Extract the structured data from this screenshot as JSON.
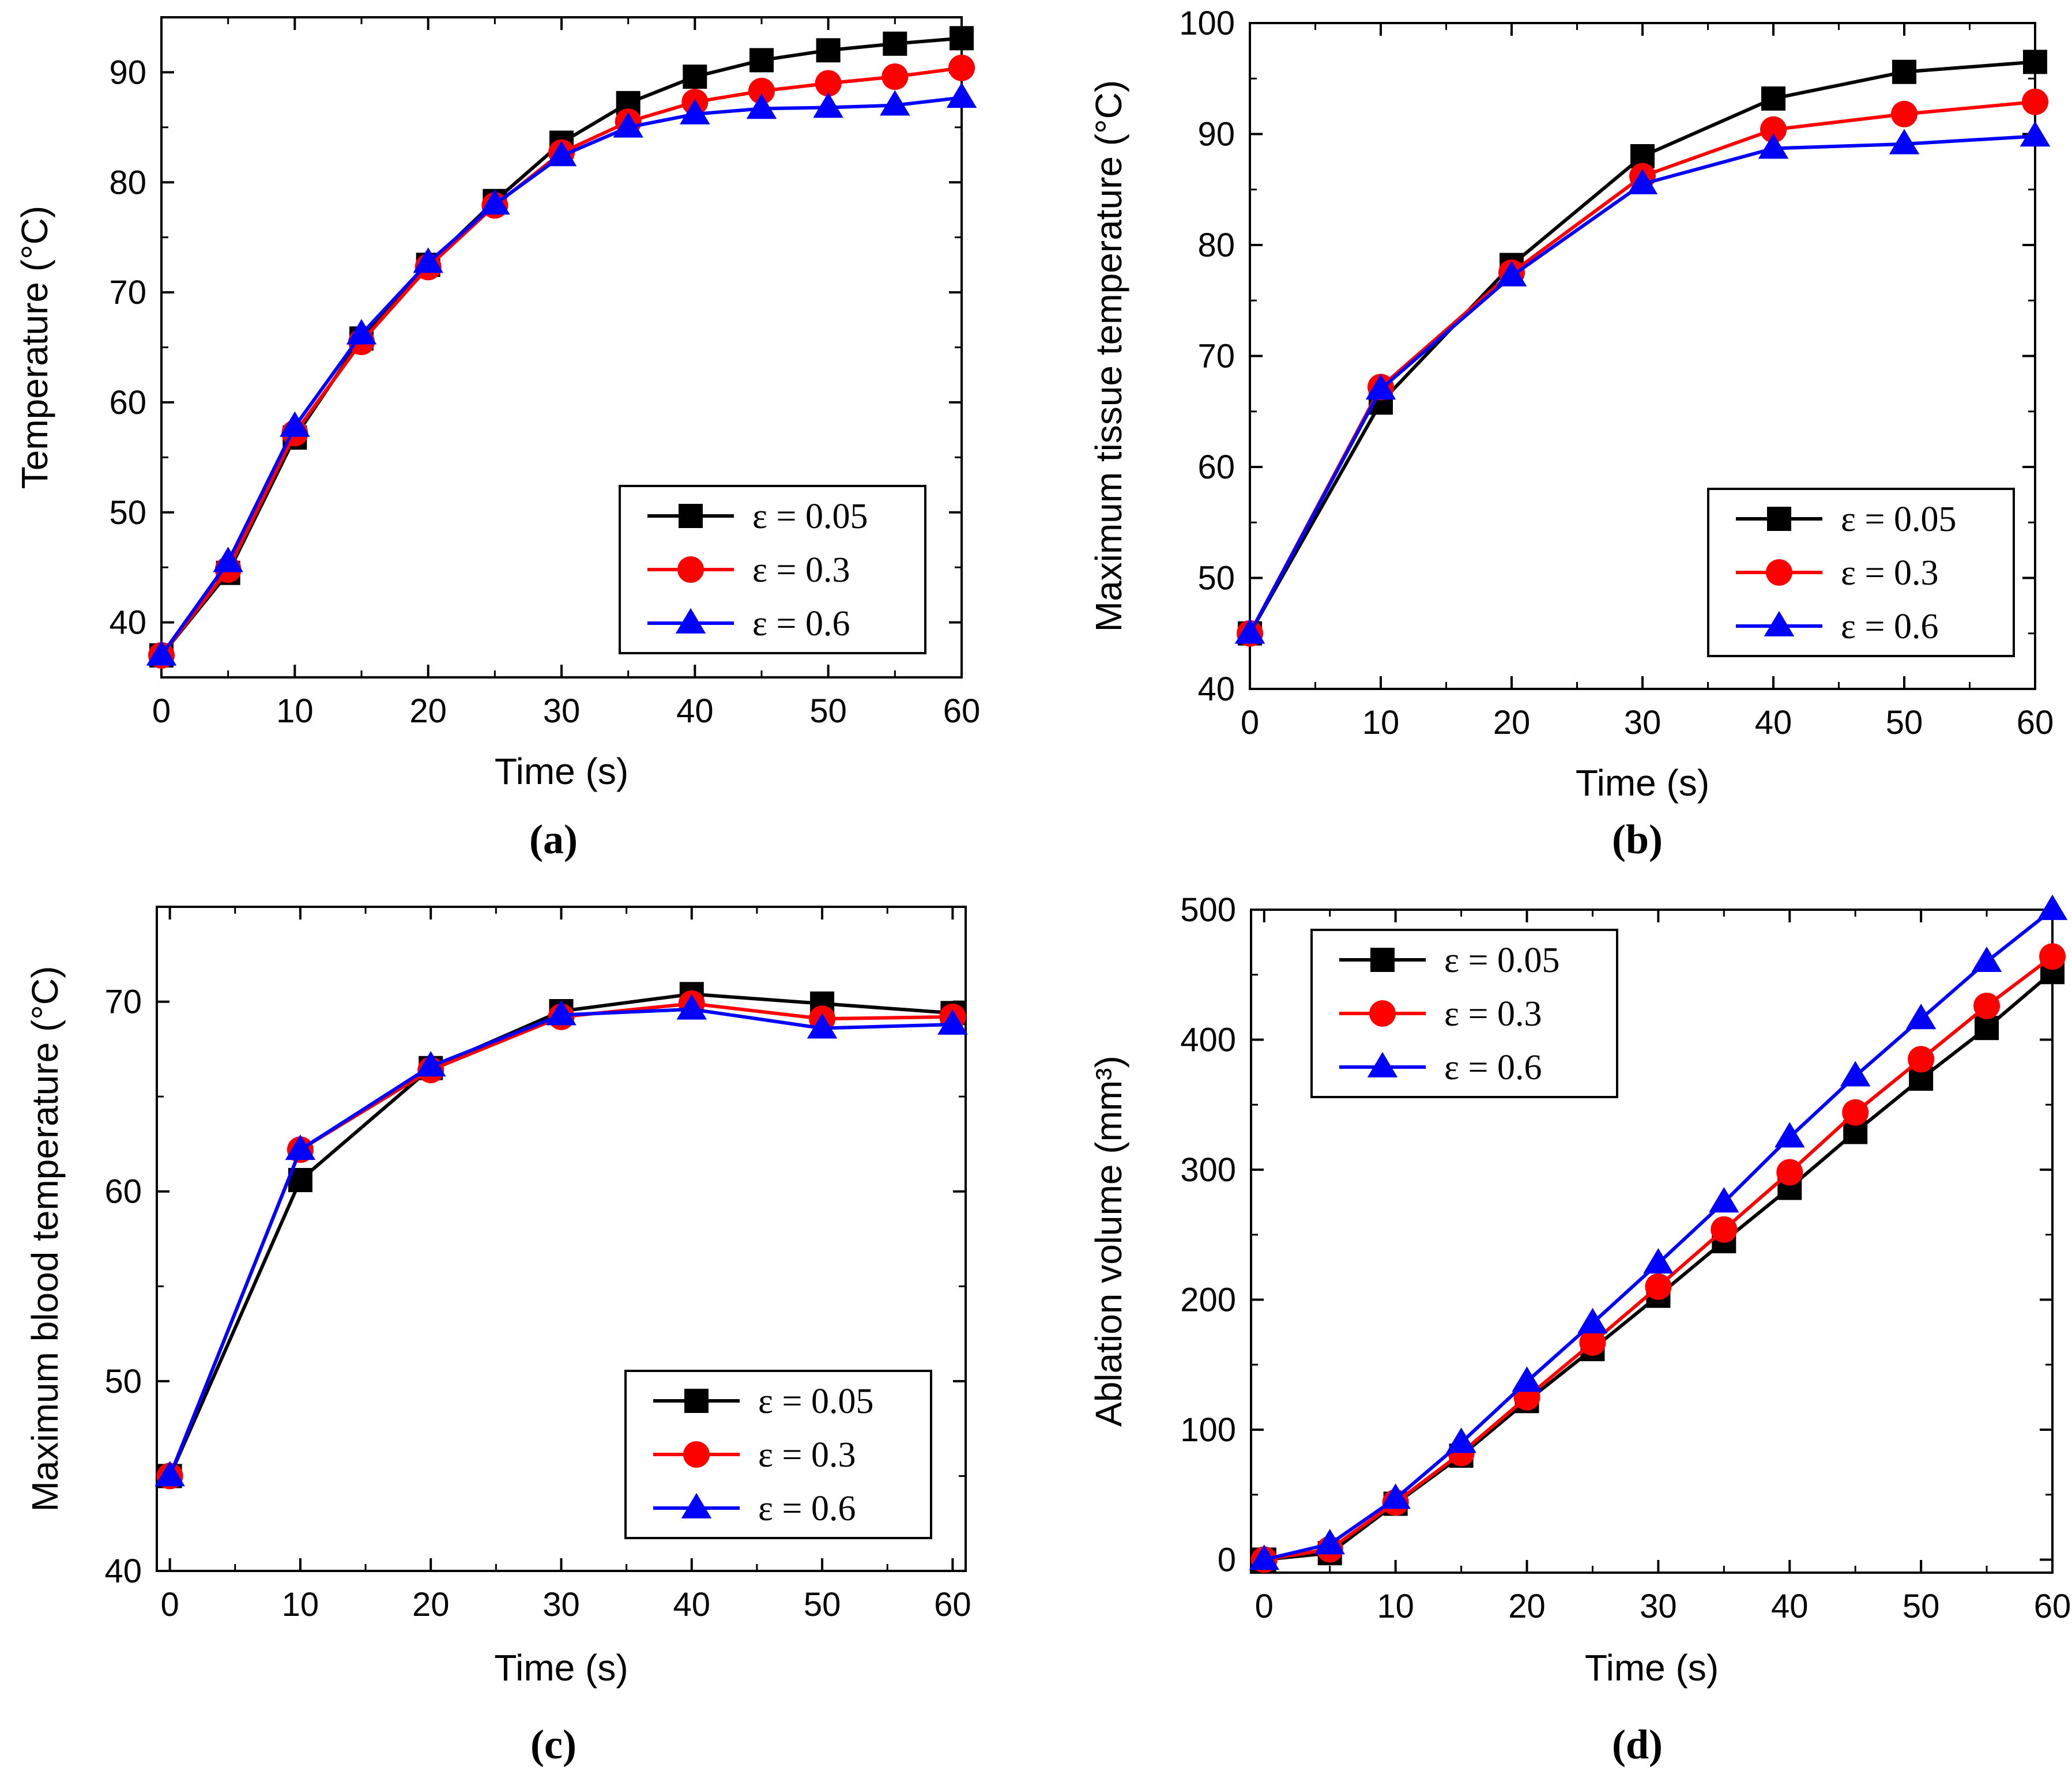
{
  "chart_data": [
    {
      "type": "line",
      "panel": "(a)",
      "xlabel": "Time (s)",
      "ylabel": "Temperature (°C)",
      "xlim": [
        0,
        60
      ],
      "ylim": [
        35,
        95
      ],
      "xticks": [
        0,
        10,
        20,
        30,
        40,
        50,
        60
      ],
      "yticks": [
        40,
        50,
        60,
        70,
        80,
        90
      ],
      "legend_position": "bottom-right",
      "series": [
        {
          "name": "ε = 0.05",
          "color": "#000000",
          "marker": "square",
          "x": [
            0,
            5,
            10,
            15,
            20,
            25,
            30,
            35,
            40,
            45,
            50,
            55,
            60
          ],
          "y": [
            37,
            44.5,
            56.8,
            65.8,
            72.5,
            78.3,
            83.6,
            87.2,
            89.6,
            91.1,
            92.0,
            92.6,
            93.1
          ]
        },
        {
          "name": "ε = 0.3",
          "color": "#ff0000",
          "marker": "circle",
          "x": [
            0,
            5,
            10,
            15,
            20,
            25,
            30,
            35,
            40,
            45,
            50,
            55,
            60
          ],
          "y": [
            37,
            44.8,
            57.2,
            65.5,
            72.3,
            77.9,
            82.7,
            85.5,
            87.3,
            88.3,
            89.0,
            89.6,
            90.4
          ]
        },
        {
          "name": "ε = 0.6",
          "color": "#0000ff",
          "marker": "triangle",
          "x": [
            0,
            5,
            10,
            15,
            20,
            25,
            30,
            35,
            40,
            45,
            50,
            55,
            60
          ],
          "y": [
            37,
            45.5,
            57.8,
            66.2,
            72.7,
            78.0,
            82.4,
            85.0,
            86.2,
            86.7,
            86.8,
            87.0,
            87.7
          ]
        }
      ]
    },
    {
      "type": "line",
      "panel": "(b)",
      "xlabel": "Time (s)",
      "ylabel": "Maximum tissue temperature (°C)",
      "xlim": [
        0,
        60
      ],
      "ylim": [
        40,
        100
      ],
      "xticks": [
        0,
        10,
        20,
        30,
        40,
        50,
        60
      ],
      "yticks": [
        40,
        50,
        60,
        70,
        80,
        90,
        100
      ],
      "legend_position": "bottom-right",
      "series": [
        {
          "name": "ε = 0.05",
          "color": "#000000",
          "marker": "square",
          "x": [
            0,
            10,
            20,
            30,
            40,
            50,
            60
          ],
          "y": [
            45,
            65.8,
            78.2,
            88.0,
            93.2,
            95.6,
            96.5
          ]
        },
        {
          "name": "ε = 0.3",
          "color": "#ff0000",
          "marker": "circle",
          "x": [
            0,
            10,
            20,
            30,
            40,
            50,
            60
          ],
          "y": [
            45,
            67.2,
            77.5,
            86.2,
            90.4,
            91.8,
            92.9
          ]
        },
        {
          "name": "ε = 0.6",
          "color": "#0000ff",
          "marker": "triangle",
          "x": [
            0,
            10,
            20,
            30,
            40,
            50,
            60
          ],
          "y": [
            45,
            67.0,
            77.2,
            85.5,
            88.7,
            89.1,
            89.8
          ]
        }
      ]
    },
    {
      "type": "line",
      "panel": "(c)",
      "xlabel": "Time (s)",
      "ylabel": "Maximum blood temperature (°C)",
      "xlim": [
        -1,
        61
      ],
      "ylim": [
        40,
        75
      ],
      "xticks": [
        0,
        10,
        20,
        30,
        40,
        50,
        60
      ],
      "yticks": [
        40,
        50,
        60,
        70
      ],
      "legend_position": "bottom-right",
      "series": [
        {
          "name": "ε = 0.05",
          "color": "#000000",
          "marker": "square",
          "x": [
            0,
            10,
            20,
            30,
            40,
            50,
            60
          ],
          "y": [
            45,
            60.6,
            66.5,
            69.5,
            70.4,
            69.9,
            69.4
          ]
        },
        {
          "name": "ε = 0.3",
          "color": "#ff0000",
          "marker": "circle",
          "x": [
            0,
            10,
            20,
            30,
            40,
            50,
            60
          ],
          "y": [
            45,
            62.2,
            66.4,
            69.2,
            69.9,
            69.1,
            69.2
          ]
        },
        {
          "name": "ε = 0.6",
          "color": "#0000ff",
          "marker": "triangle",
          "x": [
            0,
            10,
            20,
            30,
            40,
            50,
            60
          ],
          "y": [
            45,
            62.2,
            66.6,
            69.3,
            69.6,
            68.6,
            68.8
          ]
        }
      ]
    },
    {
      "type": "line",
      "panel": "(d)",
      "xlabel": "Time (s)",
      "ylabel": "Ablation volume (mm³)",
      "xlim": [
        -1,
        60
      ],
      "ylim": [
        -10,
        500
      ],
      "xticks": [
        0,
        10,
        20,
        30,
        40,
        50,
        60
      ],
      "yticks": [
        0,
        100,
        200,
        300,
        400,
        500
      ],
      "legend_position": "top-left",
      "series": [
        {
          "name": "ε = 0.05",
          "color": "#000000",
          "marker": "square",
          "x": [
            0,
            5,
            10,
            15,
            20,
            25,
            30,
            35,
            40,
            45,
            50,
            55,
            60
          ],
          "y": [
            0,
            5,
            43,
            80,
            122,
            162,
            203,
            245,
            286,
            329,
            370,
            409,
            452
          ]
        },
        {
          "name": "ε = 0.3",
          "color": "#ff0000",
          "marker": "circle",
          "x": [
            0,
            5,
            10,
            15,
            20,
            25,
            30,
            35,
            40,
            45,
            50,
            55,
            60
          ],
          "y": [
            0,
            8,
            44,
            82,
            125,
            167,
            210,
            254,
            298,
            344,
            385,
            426,
            464
          ]
        },
        {
          "name": "ε = 0.6",
          "color": "#0000ff",
          "marker": "triangle",
          "x": [
            0,
            5,
            10,
            15,
            20,
            25,
            30,
            35,
            40,
            45,
            50,
            55,
            60
          ],
          "y": [
            0,
            12,
            47,
            90,
            137,
            182,
            228,
            275,
            325,
            372,
            416,
            460,
            500
          ]
        }
      ]
    }
  ]
}
